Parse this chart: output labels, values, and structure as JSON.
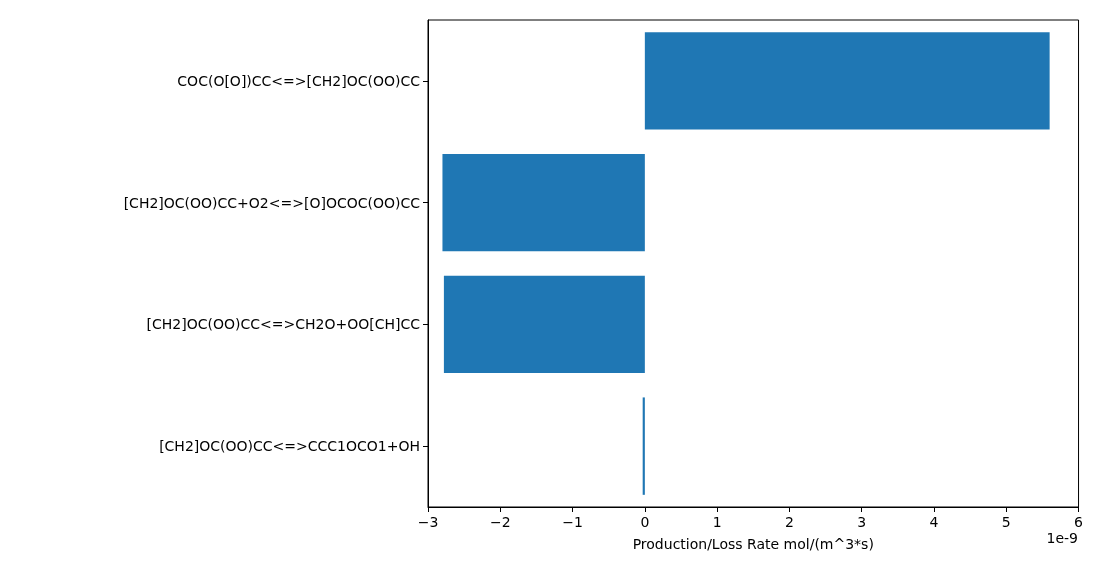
{
  "chart_data": {
    "type": "bar",
    "orientation": "horizontal",
    "categories": [
      "COC(O[O])CC<=>[CH2]OC(OO)CC",
      "[CH2]OC(OO)CC+O2<=>[O]OCOC(OO)CC",
      "[CH2]OC(OO)CC<=>CH2O+OO[CH]CC",
      "[CH2]OC(OO)CC<=>CCC1OCO1+OH"
    ],
    "values": [
      5.6,
      -2.8,
      -2.78,
      -0.03
    ],
    "color": "#1f77b4",
    "xlabel": "Production/Loss Rate mol/(m^3*s)",
    "annotations": [
      "1e-9"
    ],
    "xlim": [
      -3,
      6
    ],
    "xticks": [
      {
        "value": -3,
        "label": "−3"
      },
      {
        "value": -2,
        "label": "−2"
      },
      {
        "value": -1,
        "label": "−1"
      },
      0,
      1,
      2,
      3,
      4,
      5,
      6
    ],
    "grid": false
  }
}
